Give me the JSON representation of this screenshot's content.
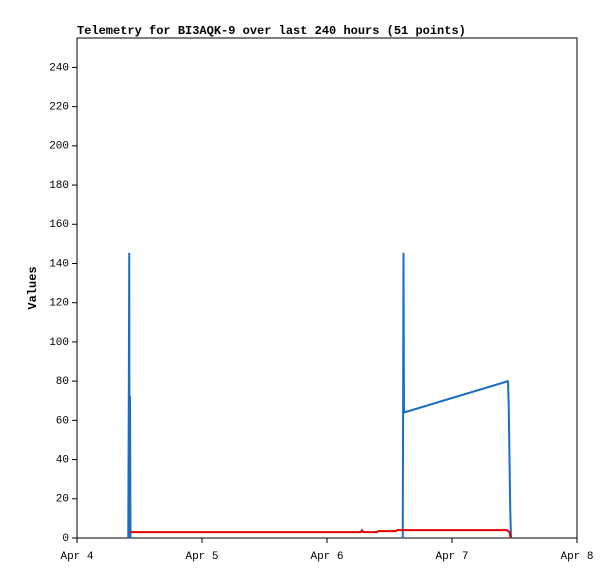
{
  "chart_data": {
    "type": "line",
    "title": "Telemetry for BI3AQK-9 over last 240 hours (51 points)",
    "y_label": "Values",
    "xlim": [
      0,
      4
    ],
    "xticks": [
      {
        "value": 0,
        "label": "Apr 4"
      },
      {
        "value": 1,
        "label": "Apr 5"
      },
      {
        "value": 2,
        "label": "Apr 6"
      },
      {
        "value": 3,
        "label": "Apr 7"
      },
      {
        "value": 4,
        "label": "Apr 8"
      }
    ],
    "ylim": [
      0,
      255
    ],
    "yticks": [
      0,
      20,
      40,
      60,
      80,
      100,
      120,
      140,
      160,
      180,
      200,
      220,
      240
    ],
    "grid": false,
    "series": [
      {
        "color": "#1a6fc4",
        "x": [
          0.41,
          0.414,
          0.418,
          0.42,
          0.424,
          0.428,
          2.6,
          2.606,
          2.612,
          2.616,
          3.448,
          3.454,
          3.46,
          3.466,
          3.472
        ],
        "values": [
          0,
          64,
          145,
          0,
          72,
          0,
          null,
          0,
          145,
          64,
          80,
          67,
          40,
          14,
          0
        ]
      },
      {
        "color": "#e00000",
        "x": [
          0.424,
          2.27,
          2.28,
          2.29,
          2.4,
          2.41,
          2.55,
          2.56,
          3.44,
          3.46,
          3.47
        ],
        "values": [
          3,
          3,
          4,
          3,
          3,
          3.5,
          3.5,
          4,
          4,
          3,
          0
        ]
      }
    ]
  }
}
